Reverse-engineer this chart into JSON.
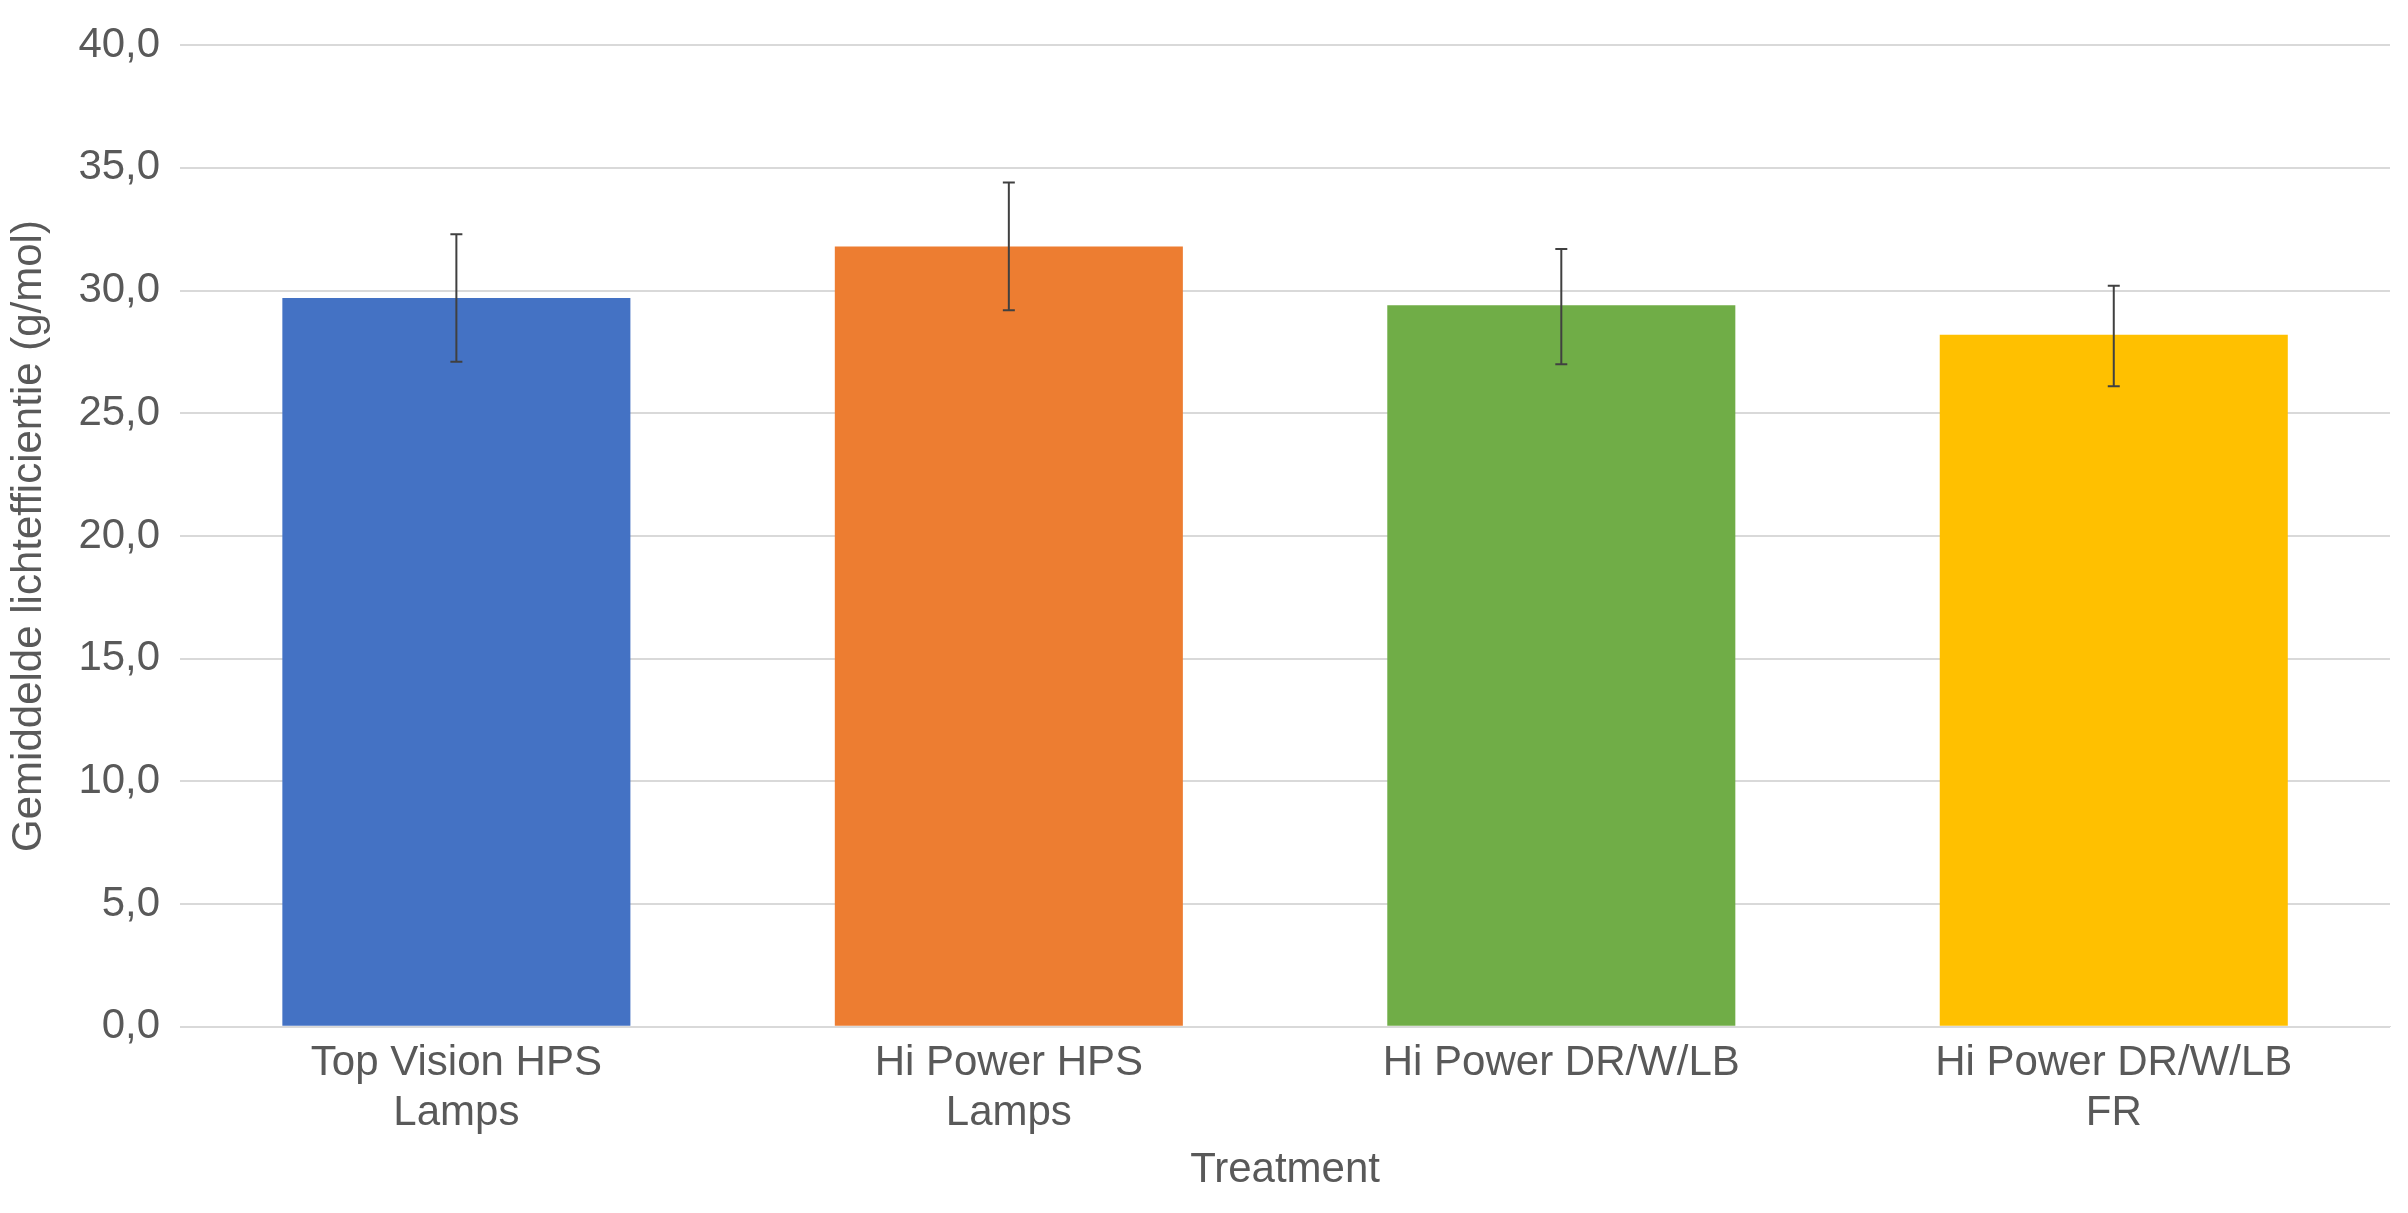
{
  "chart_data": {
    "type": "bar",
    "xlabel": "Treatment",
    "ylabel": "Gemiddelde lichtefficientie (g/mol)",
    "categories": [
      "Top Vision HPS Lamps",
      "Hi Power HPS Lamps",
      "Hi Power DR/W/LB",
      "Hi Power DR/W/LB FR"
    ],
    "values": [
      29.7,
      31.8,
      29.4,
      28.2
    ],
    "colors": [
      "#4472c4",
      "#ed7d31",
      "#70ad47",
      "#ffc000"
    ],
    "errors": [
      [
        27.1,
        32.3
      ],
      [
        29.2,
        34.4
      ],
      [
        27.0,
        31.7
      ],
      [
        26.1,
        30.2
      ]
    ],
    "ylim": [
      0,
      40
    ],
    "yticks": [
      {
        "value": 0,
        "label": "0,0"
      },
      {
        "value": 5,
        "label": "5,0"
      },
      {
        "value": 10,
        "label": "10,0"
      },
      {
        "value": 15,
        "label": "15,0"
      },
      {
        "value": 20,
        "label": "20,0"
      },
      {
        "value": 25,
        "label": "25,0"
      },
      {
        "value": 30,
        "label": "30,0"
      },
      {
        "value": 35,
        "label": "35,0"
      },
      {
        "value": 40,
        "label": "40,0"
      }
    ],
    "grid": "y",
    "legend": false
  }
}
